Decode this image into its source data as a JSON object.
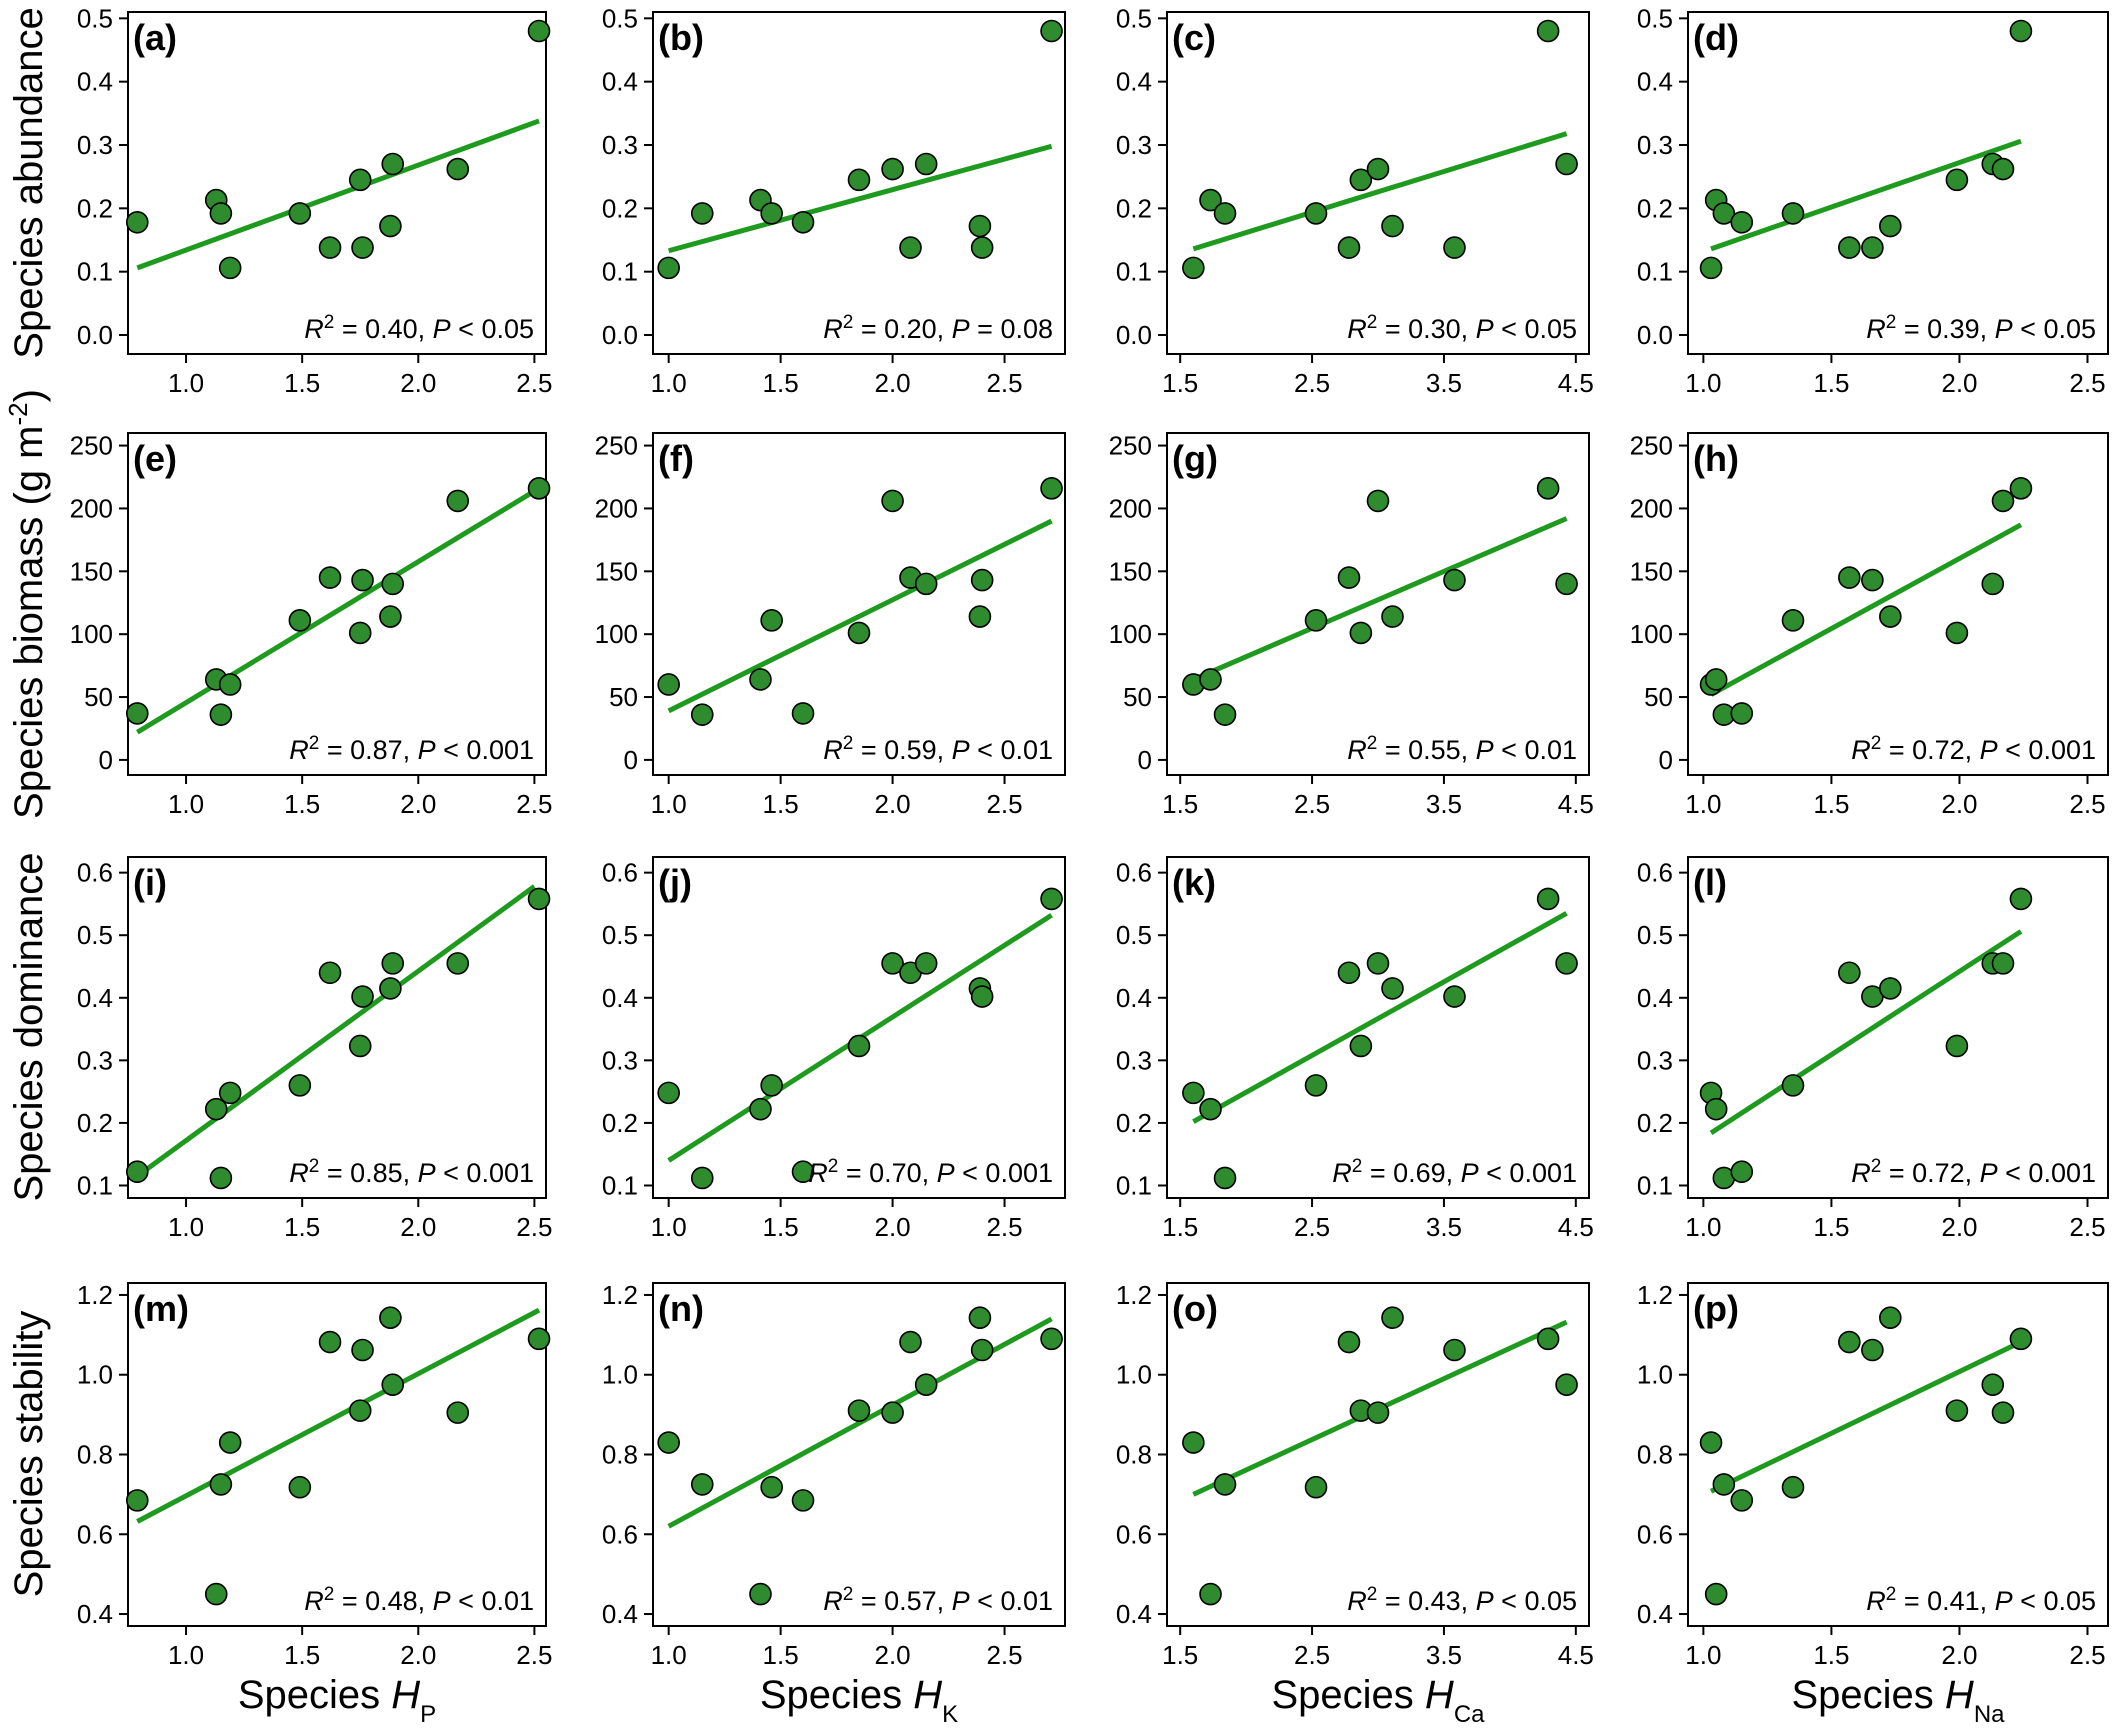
{
  "style": {
    "point_fill": "#2e8b2e",
    "point_stroke": "#000000",
    "line_color": "#1e9a1e",
    "frame_color": "#000000",
    "background": "#ffffff"
  },
  "row_titles": [
    "Species abundance",
    "Species biomass (g m",
    "Species dominance",
    "Species stability"
  ],
  "row_title_superscript": "-2",
  "row_title_suffix": ")",
  "column_titles": [
    {
      "prefix": "Species ",
      "var": "H",
      "sub": "P"
    },
    {
      "prefix": "Species ",
      "var": "H",
      "sub": "K"
    },
    {
      "prefix": "Species ",
      "var": "H",
      "sub": "Ca"
    },
    {
      "prefix": "Species ",
      "var": "H",
      "sub": "Na"
    }
  ],
  "stat_symbols": {
    "r": "R",
    "r_sup": "2",
    "p": "P"
  },
  "x_axes": [
    {
      "ticks": [
        "1.0",
        "1.5",
        "2.0",
        "2.5"
      ],
      "values": [
        1.0,
        1.5,
        2.0,
        2.5
      ],
      "xlim": [
        0.75,
        2.55
      ]
    },
    {
      "ticks": [
        "1.0",
        "1.5",
        "2.0",
        "2.5"
      ],
      "values": [
        1.0,
        1.5,
        2.0,
        2.5
      ],
      "xlim": [
        0.93,
        2.77
      ]
    },
    {
      "ticks": [
        "1.5",
        "2.5",
        "3.5",
        "4.5"
      ],
      "values": [
        1.5,
        2.5,
        3.5,
        4.5
      ],
      "xlim": [
        1.4,
        4.6
      ]
    },
    {
      "ticks": [
        "1.0",
        "1.5",
        "2.0",
        "2.5"
      ],
      "values": [
        1.0,
        1.5,
        2.0,
        2.5
      ],
      "xlim": [
        0.94,
        2.58
      ]
    }
  ],
  "y_axes": [
    {
      "ticks": [
        "0.0",
        "0.1",
        "0.2",
        "0.3",
        "0.4",
        "0.5"
      ],
      "values": [
        0,
        0.1,
        0.2,
        0.3,
        0.4,
        0.5
      ],
      "ylim": [
        -0.03,
        0.51
      ]
    },
    {
      "ticks": [
        "0",
        "50",
        "100",
        "150",
        "200",
        "250"
      ],
      "values": [
        0,
        50,
        100,
        150,
        200,
        250
      ],
      "ylim": [
        -12,
        260
      ]
    },
    {
      "ticks": [
        "0.1",
        "0.2",
        "0.3",
        "0.4",
        "0.5",
        "0.6"
      ],
      "values": [
        0.1,
        0.2,
        0.3,
        0.4,
        0.5,
        0.6
      ],
      "ylim": [
        0.08,
        0.625
      ]
    },
    {
      "ticks": [
        "0.4",
        "0.6",
        "0.8",
        "1.0",
        "1.2"
      ],
      "values": [
        0.4,
        0.6,
        0.8,
        1.0,
        1.2
      ],
      "ylim": [
        0.37,
        1.23
      ]
    }
  ],
  "chart_data": [
    {
      "tag": "(a)",
      "type": "scatter",
      "r2": "0.40",
      "p": "< 0.05",
      "x": [
        0.79,
        1.13,
        1.15,
        1.19,
        1.49,
        1.62,
        1.75,
        1.76,
        1.88,
        1.89,
        2.17,
        2.52
      ],
      "y": [
        0.178,
        0.213,
        0.192,
        0.106,
        0.192,
        0.138,
        0.245,
        0.138,
        0.172,
        0.27,
        0.262,
        0.48
      ],
      "fit": [
        [
          0.79,
          0.106
        ],
        [
          2.52,
          0.338
        ]
      ]
    },
    {
      "tag": "(b)",
      "type": "scatter",
      "r2": "0.20",
      "p": "= 0.08",
      "x": [
        1.0,
        1.15,
        1.41,
        1.46,
        1.6,
        1.85,
        2.0,
        2.08,
        2.15,
        2.39,
        2.4,
        2.71
      ],
      "y": [
        0.106,
        0.192,
        0.213,
        0.192,
        0.178,
        0.245,
        0.262,
        0.138,
        0.27,
        0.172,
        0.138,
        0.48
      ],
      "fit": [
        [
          1.0,
          0.133
        ],
        [
          2.71,
          0.298
        ]
      ]
    },
    {
      "tag": "(c)",
      "type": "scatter",
      "r2": "0.30",
      "p": "< 0.05",
      "x": [
        1.6,
        1.73,
        1.84,
        2.53,
        2.78,
        2.87,
        3.0,
        3.11,
        3.58,
        4.29,
        4.43
      ],
      "y": [
        0.106,
        0.213,
        0.192,
        0.192,
        0.138,
        0.245,
        0.262,
        0.172,
        0.138,
        0.48,
        0.27
      ],
      "fit": [
        [
          1.6,
          0.136
        ],
        [
          4.43,
          0.318
        ]
      ]
    },
    {
      "tag": "(d)",
      "type": "scatter",
      "r2": "0.39",
      "p": "< 0.05",
      "x": [
        1.03,
        1.05,
        1.08,
        1.15,
        1.35,
        1.57,
        1.66,
        1.73,
        1.99,
        2.13,
        2.17,
        2.24
      ],
      "y": [
        0.106,
        0.213,
        0.192,
        0.178,
        0.192,
        0.138,
        0.138,
        0.172,
        0.245,
        0.27,
        0.262,
        0.48
      ],
      "fit": [
        [
          1.03,
          0.136
        ],
        [
          2.24,
          0.306
        ]
      ]
    },
    {
      "tag": "(e)",
      "type": "scatter",
      "r2": "0.87",
      "p": "< 0.001",
      "x": [
        0.79,
        1.13,
        1.15,
        1.19,
        1.49,
        1.62,
        1.75,
        1.76,
        1.88,
        1.89,
        2.17,
        2.52
      ],
      "y": [
        37,
        64,
        36,
        60,
        111,
        145,
        101,
        143,
        114,
        140,
        206,
        216
      ],
      "fit": [
        [
          0.79,
          22
        ],
        [
          2.52,
          216
        ]
      ]
    },
    {
      "tag": "(f)",
      "type": "scatter",
      "r2": "0.59",
      "p": "< 0.01",
      "x": [
        1.0,
        1.15,
        1.41,
        1.46,
        1.6,
        1.85,
        2.0,
        2.08,
        2.15,
        2.39,
        2.4,
        2.71
      ],
      "y": [
        60,
        36,
        64,
        111,
        37,
        101,
        206,
        145,
        140,
        114,
        143,
        216
      ],
      "fit": [
        [
          1.0,
          39
        ],
        [
          2.71,
          190
        ]
      ]
    },
    {
      "tag": "(g)",
      "type": "scatter",
      "r2": "0.55",
      "p": "< 0.01",
      "x": [
        1.6,
        1.73,
        1.84,
        2.53,
        2.78,
        2.87,
        3.0,
        3.11,
        3.58,
        4.29,
        4.43
      ],
      "y": [
        60,
        64,
        36,
        111,
        145,
        101,
        206,
        114,
        143,
        216,
        140
      ],
      "fit": [
        [
          1.6,
          64
        ],
        [
          4.43,
          192
        ]
      ]
    },
    {
      "tag": "(h)",
      "type": "scatter",
      "r2": "0.72",
      "p": "< 0.001",
      "x": [
        1.03,
        1.05,
        1.08,
        1.15,
        1.35,
        1.57,
        1.66,
        1.73,
        1.99,
        2.13,
        2.17,
        2.24
      ],
      "y": [
        60,
        64,
        36,
        37,
        111,
        145,
        143,
        114,
        101,
        140,
        206,
        216
      ],
      "fit": [
        [
          1.03,
          52
        ],
        [
          2.24,
          187
        ]
      ]
    },
    {
      "tag": "(i)",
      "type": "scatter",
      "r2": "0.85",
      "p": "< 0.001",
      "x": [
        0.79,
        1.13,
        1.15,
        1.19,
        1.49,
        1.62,
        1.75,
        1.76,
        1.88,
        1.89,
        2.17,
        2.52
      ],
      "y": [
        0.122,
        0.222,
        0.112,
        0.248,
        0.26,
        0.44,
        0.323,
        0.402,
        0.415,
        0.455,
        0.455,
        0.558
      ],
      "fit": [
        [
          0.79,
          0.115
        ],
        [
          2.5,
          0.578
        ]
      ]
    },
    {
      "tag": "(j)",
      "type": "scatter",
      "r2": "0.70",
      "p": "< 0.001",
      "x": [
        1.0,
        1.15,
        1.41,
        1.46,
        1.6,
        1.85,
        2.0,
        2.08,
        2.15,
        2.39,
        2.4,
        2.71
      ],
      "y": [
        0.248,
        0.112,
        0.222,
        0.26,
        0.122,
        0.323,
        0.455,
        0.44,
        0.455,
        0.415,
        0.402,
        0.558
      ],
      "fit": [
        [
          1.0,
          0.14
        ],
        [
          2.71,
          0.532
        ]
      ]
    },
    {
      "tag": "(k)",
      "type": "scatter",
      "r2": "0.69",
      "p": "< 0.001",
      "x": [
        1.6,
        1.73,
        1.84,
        2.53,
        2.78,
        2.87,
        3.0,
        3.11,
        3.58,
        4.29,
        4.43
      ],
      "y": [
        0.248,
        0.222,
        0.112,
        0.26,
        0.44,
        0.323,
        0.455,
        0.415,
        0.402,
        0.558,
        0.455
      ],
      "fit": [
        [
          1.6,
          0.202
        ],
        [
          4.43,
          0.535
        ]
      ]
    },
    {
      "tag": "(l)",
      "type": "scatter",
      "r2": "0.72",
      "p": "< 0.001",
      "x": [
        1.03,
        1.05,
        1.08,
        1.15,
        1.35,
        1.57,
        1.66,
        1.73,
        1.99,
        2.13,
        2.17,
        2.24
      ],
      "y": [
        0.248,
        0.222,
        0.112,
        0.122,
        0.26,
        0.44,
        0.402,
        0.415,
        0.323,
        0.455,
        0.455,
        0.558
      ],
      "fit": [
        [
          1.03,
          0.184
        ],
        [
          2.24,
          0.506
        ]
      ]
    },
    {
      "tag": "(m)",
      "type": "scatter",
      "r2": "0.48",
      "p": "< 0.01",
      "x": [
        0.79,
        1.13,
        1.15,
        1.19,
        1.49,
        1.62,
        1.75,
        1.76,
        1.88,
        1.89,
        2.17,
        2.52
      ],
      "y": [
        0.685,
        0.45,
        0.725,
        0.83,
        0.718,
        1.082,
        0.91,
        1.062,
        1.143,
        0.975,
        0.905,
        1.09
      ],
      "fit": [
        [
          0.79,
          0.632
        ],
        [
          2.52,
          1.162
        ]
      ]
    },
    {
      "tag": "(n)",
      "type": "scatter",
      "r2": "0.57",
      "p": "< 0.01",
      "x": [
        1.0,
        1.15,
        1.41,
        1.46,
        1.6,
        1.85,
        2.0,
        2.08,
        2.15,
        2.39,
        2.4,
        2.71
      ],
      "y": [
        0.83,
        0.725,
        0.45,
        0.718,
        0.685,
        0.91,
        0.905,
        1.082,
        0.975,
        1.143,
        1.062,
        1.09
      ],
      "fit": [
        [
          1.0,
          0.62
        ],
        [
          2.71,
          1.14
        ]
      ]
    },
    {
      "tag": "(o)",
      "type": "scatter",
      "r2": "0.43",
      "p": "< 0.05",
      "x": [
        1.6,
        1.73,
        1.84,
        2.53,
        2.78,
        2.87,
        3.0,
        3.11,
        3.58,
        4.29,
        4.43
      ],
      "y": [
        0.83,
        0.45,
        0.725,
        0.718,
        1.082,
        0.91,
        0.905,
        1.143,
        1.062,
        1.09,
        0.975
      ],
      "fit": [
        [
          1.6,
          0.7
        ],
        [
          4.43,
          1.132
        ]
      ]
    },
    {
      "tag": "(p)",
      "type": "scatter",
      "r2": "0.41",
      "p": "< 0.05",
      "x": [
        1.03,
        1.05,
        1.08,
        1.15,
        1.35,
        1.57,
        1.66,
        1.73,
        1.99,
        2.13,
        2.17,
        2.24
      ],
      "y": [
        0.83,
        0.45,
        0.725,
        0.685,
        0.718,
        1.082,
        1.062,
        1.143,
        0.91,
        0.975,
        0.905,
        1.09
      ],
      "fit": [
        [
          1.03,
          0.708
        ],
        [
          2.24,
          1.082
        ]
      ]
    }
  ]
}
